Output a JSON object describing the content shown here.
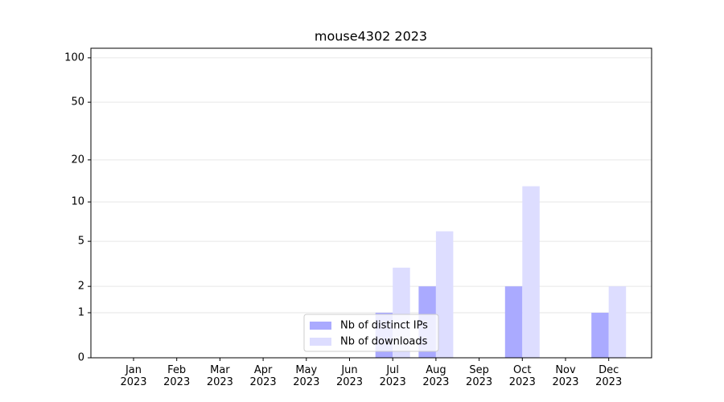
{
  "chart_data": {
    "type": "bar",
    "title": "mouse4302 2023",
    "categories": [
      "Jan\n2023",
      "Feb\n2023",
      "Mar\n2023",
      "Apr\n2023",
      "May\n2023",
      "Jun\n2023",
      "Jul\n2023",
      "Aug\n2023",
      "Sep\n2023",
      "Oct\n2023",
      "Nov\n2023",
      "Dec\n2023"
    ],
    "series": [
      {
        "name": "Nb of distinct IPs",
        "color": "#aaaaff",
        "values": [
          0,
          0,
          0,
          0,
          0,
          0,
          1,
          2,
          0,
          2,
          0,
          1
        ]
      },
      {
        "name": "Nb of downloads",
        "color": "#ddddff",
        "values": [
          0,
          0,
          0,
          0,
          0,
          0,
          3,
          6,
          0,
          13,
          0,
          2
        ]
      }
    ],
    "yscale": "log1p",
    "ylim": [
      0,
      116
    ],
    "yticks": [
      0,
      1,
      2,
      5,
      10,
      20,
      50,
      100
    ],
    "grid": true,
    "legend": "lower center"
  }
}
